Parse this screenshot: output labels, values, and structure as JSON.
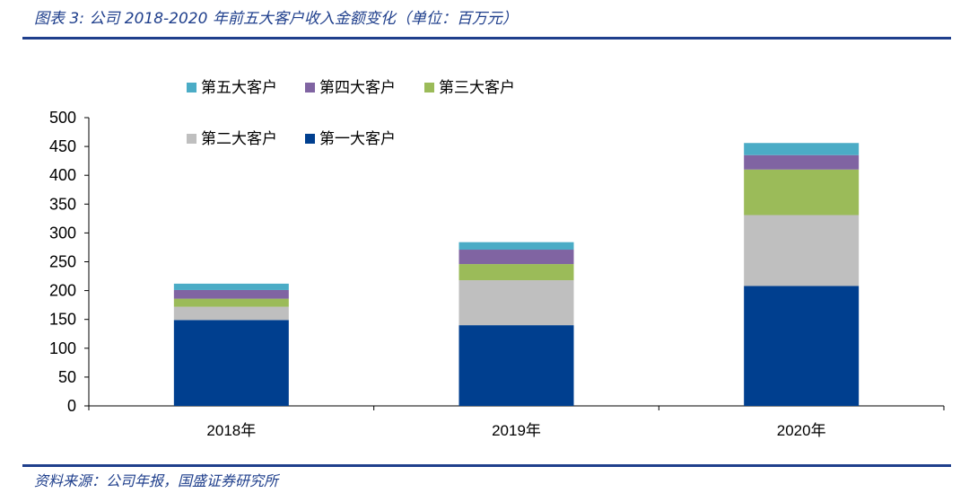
{
  "header": {
    "title": "图表 3:  公司 2018-2020 年前五大客户收入金额变化（单位：百万元）"
  },
  "footer": {
    "source": "资料来源：公司年报，国盛证券研究所"
  },
  "chart_data": {
    "type": "bar",
    "stacked": true,
    "categories": [
      "2018年",
      "2019年",
      "2020年"
    ],
    "series": [
      {
        "name": "第一大客户",
        "color": "#003f8f",
        "values": [
          149,
          140,
          208
        ]
      },
      {
        "name": "第二大客户",
        "color": "#bfbfbf",
        "values": [
          23,
          78,
          123
        ]
      },
      {
        "name": "第三大客户",
        "color": "#9bbb59",
        "values": [
          14,
          28,
          79
        ]
      },
      {
        "name": "第四大客户",
        "color": "#8064a2",
        "values": [
          15,
          25,
          25
        ]
      },
      {
        "name": "第五大客户",
        "color": "#4bacc6",
        "values": [
          11,
          13,
          21
        ]
      }
    ],
    "ylim": [
      0,
      500
    ],
    "yticks": [
      "0",
      "50",
      "100",
      "150",
      "200",
      "250",
      "300",
      "350",
      "400",
      "450",
      "500"
    ],
    "legend_placement": "top-left, two rows",
    "grid": false
  }
}
